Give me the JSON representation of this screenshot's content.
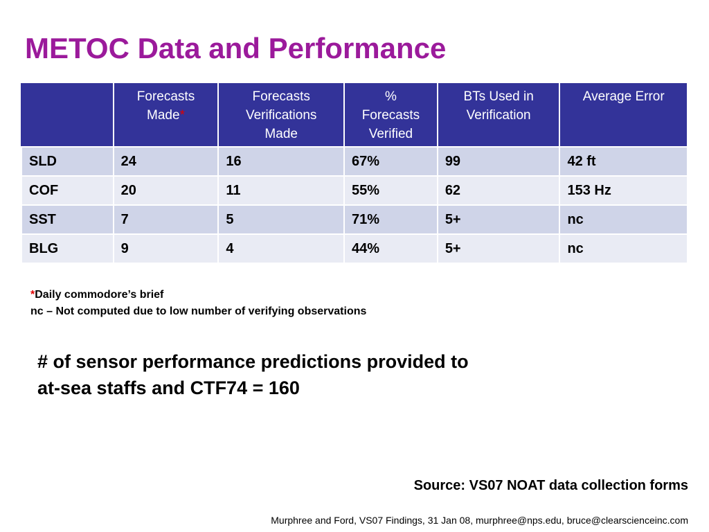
{
  "title": "METOC Data and Performance",
  "table": {
    "headers": [
      "",
      "Forecasts Made",
      "Forecasts Verifications Made",
      "% Forecasts Verified",
      "BTs Used in Verification",
      "Average Error"
    ],
    "header_asterisk": "*",
    "header_lines": {
      "forecasts_made": [
        "Forecasts",
        "Made"
      ],
      "forecasts_verifications_made": [
        "Forecasts",
        "Verifications",
        "Made"
      ],
      "percent_forecasts_verified": [
        "%",
        "Forecasts",
        "Verified"
      ],
      "bts_used": [
        "BTs Used in",
        "Verification"
      ],
      "average_error": [
        "Average Error"
      ]
    },
    "rows": [
      [
        "SLD",
        "24",
        "16",
        "67%",
        "99",
        "42 ft"
      ],
      [
        "COF",
        "20",
        "11",
        "55%",
        "62",
        "153 Hz"
      ],
      [
        "SST",
        "7",
        "5",
        "71%",
        "5+",
        "nc"
      ],
      [
        "BLG",
        "9",
        "4",
        "44%",
        "5+",
        "nc"
      ]
    ]
  },
  "notes": {
    "asterisk": "*",
    "daily_brief": "Daily commodore’s brief",
    "nc_note": "nc – Not computed due to low number of verifying observations"
  },
  "summary": {
    "line1": "# of sensor performance predictions provided to",
    "line2": "at-sea staffs and CTF74 = 160"
  },
  "source": "Source:  VS07 NOAT data collection forms",
  "footer": "Murphree and Ford, VS07 Findings, 31 Jan 08, murphree@nps.edu, bruce@clearscienceinc.com",
  "colors": {
    "title": "#9b1a9b",
    "header_bg": "#333399",
    "row_odd": "#cfd4e8",
    "row_even": "#e9ebf4",
    "asterisk": "#e00000"
  }
}
